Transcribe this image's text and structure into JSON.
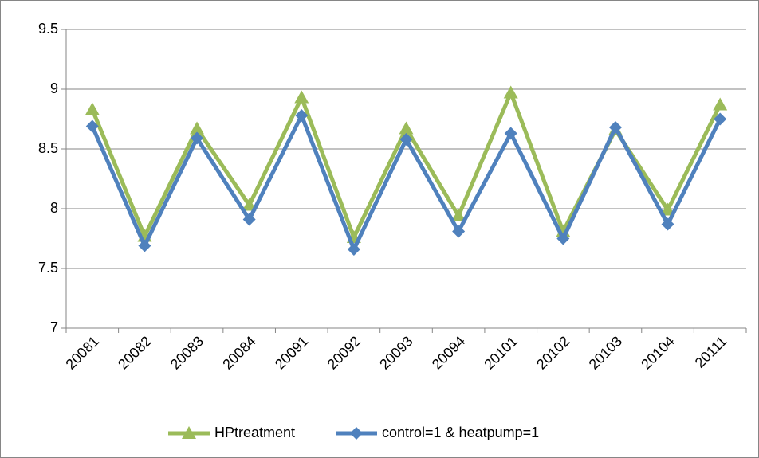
{
  "chart_data": {
    "type": "line",
    "categories": [
      "20081",
      "20082",
      "20083",
      "20084",
      "20091",
      "20092",
      "20093",
      "20094",
      "20101",
      "20102",
      "20103",
      "20104",
      "20111"
    ],
    "series": [
      {
        "name": "HPtreatment",
        "color": "#9bbb59",
        "marker": "triangle",
        "values": [
          8.83,
          7.77,
          8.67,
          8.03,
          8.93,
          7.76,
          8.67,
          7.94,
          8.97,
          7.81,
          8.66,
          7.99,
          8.87
        ]
      },
      {
        "name": "control=1 & heatpump=1",
        "color": "#4f81bd",
        "marker": "diamond",
        "values": [
          8.69,
          7.69,
          8.59,
          7.91,
          8.78,
          7.66,
          8.58,
          7.81,
          8.63,
          7.75,
          8.68,
          7.87,
          8.75
        ]
      }
    ],
    "ylim": [
      7,
      9.5
    ],
    "yticks": [
      7,
      7.5,
      8,
      8.5,
      9,
      9.5
    ],
    "grid": true,
    "legend": "bottom"
  }
}
